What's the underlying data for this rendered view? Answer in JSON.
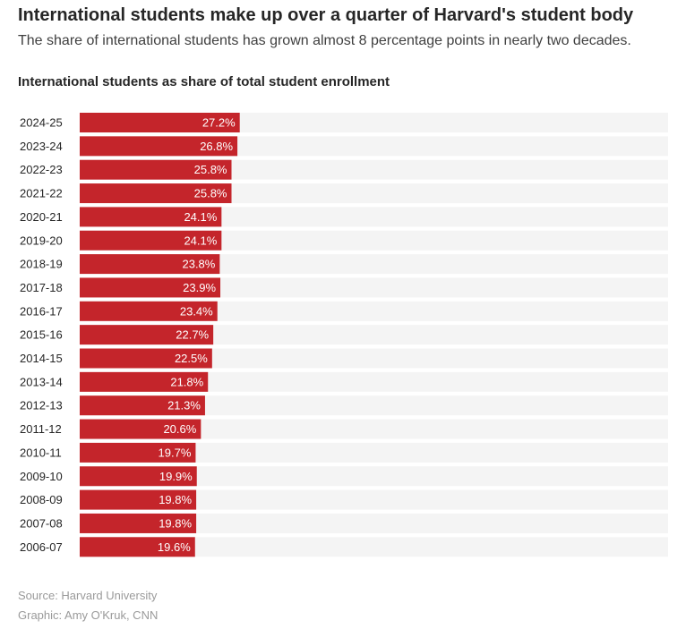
{
  "header": {
    "title": "International students make up over a quarter of Harvard's student body",
    "subtitle": "The share of international students has grown almost 8 percentage points in nearly two decades."
  },
  "chart_heading": "International students as share of total student enrollment",
  "footer": {
    "source": "Source: Harvard University",
    "credit": "Graphic: Amy O'Kruk, CNN"
  },
  "colors": {
    "bar": "#c4252b",
    "track": "#f4f4f4",
    "value_text": "#ffffff"
  },
  "chart_data": {
    "type": "bar",
    "orientation": "horizontal",
    "categories": [
      "2024-25",
      "2023-24",
      "2022-23",
      "2021-22",
      "2020-21",
      "2019-20",
      "2018-19",
      "2017-18",
      "2016-17",
      "2015-16",
      "2014-15",
      "2013-14",
      "2012-13",
      "2011-12",
      "2010-11",
      "2009-10",
      "2008-09",
      "2007-08",
      "2006-07"
    ],
    "values": [
      27.2,
      26.8,
      25.8,
      25.8,
      24.1,
      24.1,
      23.8,
      23.9,
      23.4,
      22.7,
      22.5,
      21.8,
      21.3,
      20.6,
      19.7,
      19.9,
      19.8,
      19.8,
      19.6
    ],
    "value_labels": [
      "27.2%",
      "26.8%",
      "25.8%",
      "25.8%",
      "24.1%",
      "24.1%",
      "23.8%",
      "23.9%",
      "23.4%",
      "22.7%",
      "22.5%",
      "21.8%",
      "21.3%",
      "20.6%",
      "19.7%",
      "19.9%",
      "19.8%",
      "19.8%",
      "19.6%"
    ],
    "xlim": [
      0,
      100
    ],
    "grid": false,
    "legend": "none"
  }
}
